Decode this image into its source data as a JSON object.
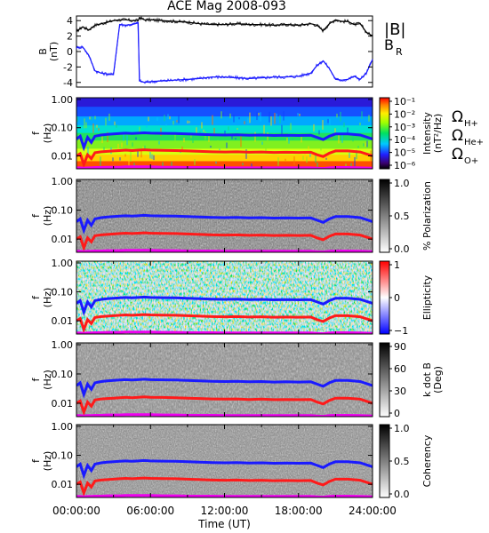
{
  "title": "ACE Mag 2008-093",
  "colors": {
    "black": "#000000",
    "blue": "#1a1aff",
    "red": "#ff1a1a",
    "magenta": "#ee00ee"
  },
  "chart_data": [
    {
      "type": "line",
      "panel": "magnetic-field",
      "ylabel": "B\n(nT)",
      "ylim": [
        -4.6,
        4.6
      ],
      "y_ticks": [
        "4",
        "2",
        "0",
        "-2",
        "-4"
      ],
      "x_tick_labels": [
        "00:00:00",
        "06:00:00",
        "12:00:00",
        "18:00:00",
        "24:00:00"
      ],
      "xlim_hours": [
        0,
        24
      ],
      "series": [
        {
          "name": "|B|",
          "color": "#000000",
          "x_hours": [
            0,
            0.5,
            1,
            1.5,
            2,
            2.5,
            3,
            3.5,
            4,
            4.5,
            5,
            5.1,
            5.5,
            6,
            7,
            8,
            9,
            10,
            11,
            12,
            13,
            14,
            15,
            16,
            17,
            18,
            19,
            19.5,
            20,
            20.5,
            21,
            21.5,
            22,
            22.5,
            23,
            23.5,
            24
          ],
          "values": [
            2.6,
            3.2,
            2.8,
            3.4,
            3.6,
            3.8,
            4.0,
            4.1,
            4.1,
            4.0,
            4.0,
            4.4,
            4.1,
            4.1,
            4.0,
            3.9,
            3.8,
            3.6,
            3.5,
            3.5,
            3.6,
            3.5,
            3.5,
            3.4,
            3.5,
            3.4,
            3.6,
            3.4,
            2.7,
            3.6,
            4.1,
            3.9,
            3.9,
            3.5,
            3.6,
            2.5,
            2.0
          ]
        },
        {
          "name": "B",
          "sub": "R",
          "color": "#1a1aff",
          "x_hours": [
            0,
            0.5,
            1,
            1.5,
            2,
            2.5,
            3,
            3.5,
            4,
            4.5,
            5,
            5.1,
            5.5,
            6,
            7,
            8,
            9,
            10,
            11,
            12,
            13,
            14,
            15,
            16,
            17,
            18,
            19,
            19.5,
            20,
            20.5,
            21,
            21.5,
            22,
            22.5,
            23,
            23.5,
            24
          ],
          "values": [
            0.5,
            0.6,
            -0.5,
            -2.5,
            -2.8,
            -2.9,
            -3.0,
            3.5,
            3.4,
            3.5,
            3.7,
            -3.8,
            -4.0,
            -3.9,
            -3.8,
            -3.7,
            -3.6,
            -3.5,
            -3.3,
            -3.3,
            -3.4,
            -3.5,
            -3.4,
            -3.3,
            -3.3,
            -3.2,
            -2.8,
            -1.8,
            -1.2,
            -2.2,
            -3.6,
            -3.7,
            -3.6,
            -3.2,
            -3.6,
            -2.8,
            -1.0
          ]
        }
      ]
    },
    {
      "type": "heatmap",
      "panel": "intensity",
      "ylabel": "f\n(Hz)",
      "y_ticks": [
        "1.00",
        "0.10",
        "0.01"
      ],
      "colorbar": {
        "label": "Intensity\n(nT²/Hz)",
        "tick_labels": [
          "10⁻¹",
          "10⁻²",
          "10⁻³",
          "10⁻⁴",
          "10⁻⁵",
          "10⁻⁶"
        ],
        "scale": "rainbow",
        "range_log10": [
          -6.5,
          -1
        ]
      },
      "legend": [
        {
          "label": "Ω",
          "sub": "H+",
          "color": "#1a1aff"
        },
        {
          "label": "Ω",
          "sub": "He+",
          "color": "#ff1a1a"
        },
        {
          "label": "Ω",
          "sub": "O+",
          "color": "#ee00ee"
        }
      ]
    },
    {
      "type": "heatmap",
      "panel": "polarization",
      "ylabel": "f\n(Hz)",
      "y_ticks": [
        "1.00",
        "0.10",
        "0.01"
      ],
      "colorbar": {
        "label": "% Polarization",
        "tick_labels": [
          "1.0",
          "0.5",
          "0.0"
        ],
        "scale": "gray",
        "range": [
          0,
          1
        ]
      }
    },
    {
      "type": "heatmap",
      "panel": "ellipticity",
      "ylabel": "f\n(Hz)",
      "y_ticks": [
        "1.00",
        "0.10",
        "0.01"
      ],
      "colorbar": {
        "label": "Ellipticity",
        "tick_labels": [
          "1",
          "0",
          "−1"
        ],
        "scale": "red-blue",
        "range": [
          -1,
          1
        ]
      }
    },
    {
      "type": "heatmap",
      "panel": "kdotb",
      "ylabel": "f\n(Hz)",
      "y_ticks": [
        "1.00",
        "0.10",
        "0.01"
      ],
      "colorbar": {
        "label": "k dot B\n(Deg)",
        "tick_labels": [
          "90",
          "60",
          "30",
          "0"
        ],
        "scale": "gray",
        "range": [
          0,
          90
        ]
      }
    },
    {
      "type": "heatmap",
      "panel": "coherency",
      "ylabel": "f\n(Hz)",
      "y_ticks": [
        "1.00",
        "0.10",
        "0.01"
      ],
      "colorbar": {
        "label": "Coherency",
        "tick_labels": [
          "1.0",
          "0.5",
          "0.0"
        ],
        "scale": "gray",
        "range": [
          0,
          1
        ]
      }
    }
  ],
  "gyrofrequency_lines": {
    "x_hours": [
      0,
      0.3,
      0.6,
      0.9,
      1.2,
      1.5,
      2,
      2.5,
      3,
      3.5,
      4,
      4.5,
      5,
      5.5,
      6,
      7,
      8,
      9,
      10,
      11,
      12,
      13,
      14,
      15,
      16,
      17,
      18,
      19,
      19.5,
      20,
      20.5,
      21,
      22,
      23,
      24
    ],
    "H+": [
      0.04,
      0.05,
      0.02,
      0.045,
      0.03,
      0.05,
      0.055,
      0.058,
      0.06,
      0.062,
      0.064,
      0.062,
      0.064,
      0.066,
      0.064,
      0.063,
      0.062,
      0.06,
      0.058,
      0.056,
      0.055,
      0.056,
      0.054,
      0.055,
      0.053,
      0.054,
      0.053,
      0.054,
      0.045,
      0.038,
      0.05,
      0.06,
      0.06,
      0.055,
      0.04
    ],
    "He+": [
      0.01,
      0.012,
      0.005,
      0.011,
      0.008,
      0.013,
      0.014,
      0.0145,
      0.015,
      0.0155,
      0.016,
      0.0155,
      0.016,
      0.0165,
      0.016,
      0.0158,
      0.0155,
      0.015,
      0.0145,
      0.014,
      0.0138,
      0.014,
      0.0135,
      0.0138,
      0.0133,
      0.0135,
      0.0133,
      0.0135,
      0.011,
      0.0095,
      0.0125,
      0.015,
      0.015,
      0.0138,
      0.01
    ],
    "O+": [
      0.0038,
      0.0038,
      0.0037,
      0.0038,
      0.0038,
      0.0039,
      0.0039,
      0.004,
      0.004,
      0.004,
      0.0041,
      0.0041,
      0.0041,
      0.0041,
      0.0041,
      0.004,
      0.004,
      0.0039,
      0.0039,
      0.0039,
      0.0038,
      0.0038,
      0.0038,
      0.0038,
      0.0038,
      0.0038,
      0.0038,
      0.0038,
      0.0037,
      0.0036,
      0.0038,
      0.0039,
      0.0039,
      0.0038,
      0.0037
    ]
  },
  "xaxis": {
    "label": "Time (UT)",
    "tick_labels": [
      "00:00:00",
      "06:00:00",
      "12:00:00",
      "18:00:00",
      "24:00:00"
    ]
  }
}
